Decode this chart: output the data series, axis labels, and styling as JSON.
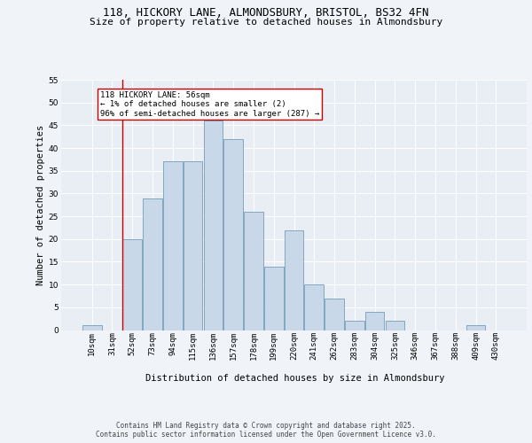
{
  "title_line1": "118, HICKORY LANE, ALMONDSBURY, BRISTOL, BS32 4FN",
  "title_line2": "Size of property relative to detached houses in Almondsbury",
  "xlabel": "Distribution of detached houses by size in Almondsbury",
  "ylabel": "Number of detached properties",
  "bar_labels": [
    "10sqm",
    "31sqm",
    "52sqm",
    "73sqm",
    "94sqm",
    "115sqm",
    "136sqm",
    "157sqm",
    "178sqm",
    "199sqm",
    "220sqm",
    "241sqm",
    "262sqm",
    "283sqm",
    "304sqm",
    "325sqm",
    "346sqm",
    "367sqm",
    "388sqm",
    "409sqm",
    "430sqm"
  ],
  "bar_values": [
    1,
    0,
    20,
    29,
    37,
    37,
    46,
    42,
    26,
    14,
    22,
    10,
    7,
    2,
    4,
    2,
    0,
    0,
    0,
    1,
    0
  ],
  "bar_color": "#c8d8e8",
  "bar_edge_color": "#6090b0",
  "background_color": "#e8eef4",
  "grid_color": "#ffffff",
  "fig_background": "#f0f4f8",
  "vline_x_index": 2,
  "vline_color": "#cc0000",
  "annotation_text": "118 HICKORY LANE: 56sqm\n← 1% of detached houses are smaller (2)\n96% of semi-detached houses are larger (287) →",
  "annotation_box_color": "#ffffff",
  "annotation_box_edge": "#cc0000",
  "ylim": [
    0,
    55
  ],
  "yticks": [
    0,
    5,
    10,
    15,
    20,
    25,
    30,
    35,
    40,
    45,
    50,
    55
  ],
  "footer_text": "Contains HM Land Registry data © Crown copyright and database right 2025.\nContains public sector information licensed under the Open Government Licence v3.0.",
  "title_fontsize": 9,
  "subtitle_fontsize": 8,
  "axis_label_fontsize": 7.5,
  "tick_fontsize": 6.5,
  "annotation_fontsize": 6.5,
  "footer_fontsize": 5.5
}
